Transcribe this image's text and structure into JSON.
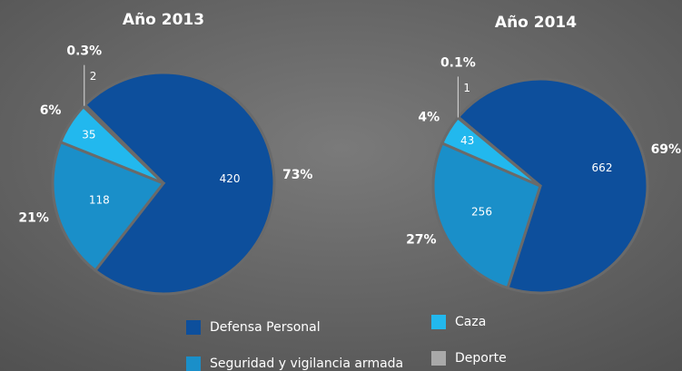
{
  "chart_data": [
    {
      "type": "pie",
      "title": "Año 2013",
      "values": [
        420,
        118,
        35,
        2
      ],
      "percent_labels": [
        "73%",
        "21%",
        "6%",
        "0.3%"
      ]
    },
    {
      "type": "pie",
      "title": "Año 2014",
      "values": [
        662,
        256,
        43,
        1
      ],
      "percent_labels": [
        "69%",
        "27%",
        "4%",
        "0.1%"
      ]
    }
  ],
  "legend": {
    "labels": [
      "Defensa Personal",
      "Seguridad y vigilancia armada",
      "Caza",
      "Deporte"
    ],
    "colors": [
      "#0d4f9c",
      "#1a8fc9",
      "#22b8ee",
      "#a9a9a9"
    ]
  }
}
